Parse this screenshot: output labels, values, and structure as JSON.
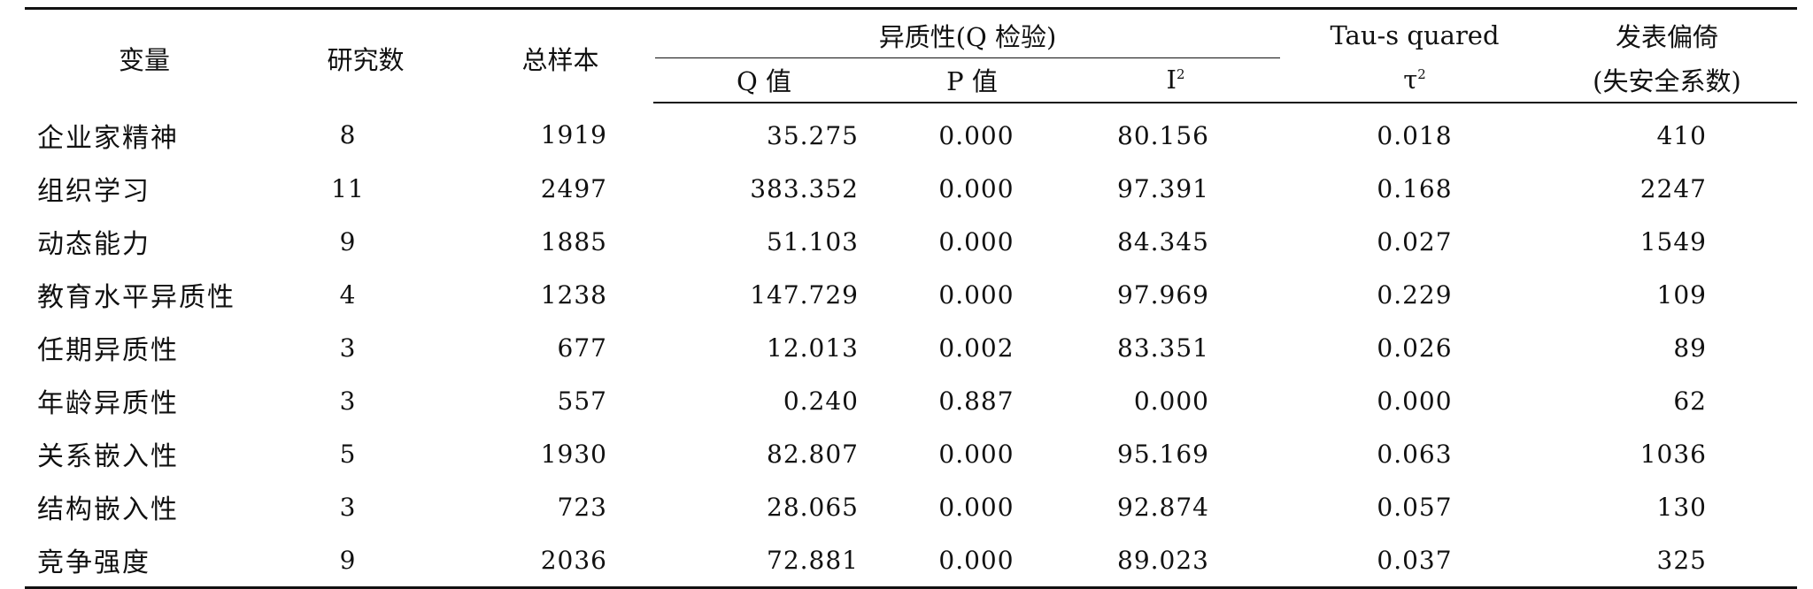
{
  "table": {
    "headers": {
      "variable": "变量",
      "studies": "研究数",
      "total_sample": "总样本",
      "heterogeneity_group": "异质性(Q 检验)",
      "q_value": "Q 值",
      "p_value": "P 值",
      "i2_base": "I",
      "i2_sup": "2",
      "tau_top": "Tau-s quared",
      "tau_base": "τ",
      "tau_sup": "2",
      "pub_bias_top": "发表偏倚",
      "pub_bias_bottom": "(失安全系数)"
    },
    "rows": [
      {
        "variable": "企业家精神",
        "studies": "8",
        "total": "1919",
        "q": "35.275",
        "p": "0.000",
        "i2": "80.156",
        "tau": "0.018",
        "pub": "410"
      },
      {
        "variable": "组织学习",
        "studies": "11",
        "total": "2497",
        "q": "383.352",
        "p": "0.000",
        "i2": "97.391",
        "tau": "0.168",
        "pub": "2247"
      },
      {
        "variable": "动态能力",
        "studies": "9",
        "total": "1885",
        "q": "51.103",
        "p": "0.000",
        "i2": "84.345",
        "tau": "0.027",
        "pub": "1549"
      },
      {
        "variable": "教育水平异质性",
        "studies": "4",
        "total": "1238",
        "q": "147.729",
        "p": "0.000",
        "i2": "97.969",
        "tau": "0.229",
        "pub": "109"
      },
      {
        "variable": "任期异质性",
        "studies": "3",
        "total": "677",
        "q": "12.013",
        "p": "0.002",
        "i2": "83.351",
        "tau": "0.026",
        "pub": "89"
      },
      {
        "variable": "年龄异质性",
        "studies": "3",
        "total": "557",
        "q": "0.240",
        "p": "0.887",
        "i2": "0.000",
        "tau": "0.000",
        "pub": "62"
      },
      {
        "variable": "关系嵌入性",
        "studies": "5",
        "total": "1930",
        "q": "82.807",
        "p": "0.000",
        "i2": "95.169",
        "tau": "0.063",
        "pub": "1036"
      },
      {
        "variable": "结构嵌入性",
        "studies": "3",
        "total": "723",
        "q": "28.065",
        "p": "0.000",
        "i2": "92.874",
        "tau": "0.057",
        "pub": "130"
      },
      {
        "variable": "竞争强度",
        "studies": "9",
        "total": "2036",
        "q": "72.881",
        "p": "0.000",
        "i2": "89.023",
        "tau": "0.037",
        "pub": "325"
      }
    ]
  }
}
